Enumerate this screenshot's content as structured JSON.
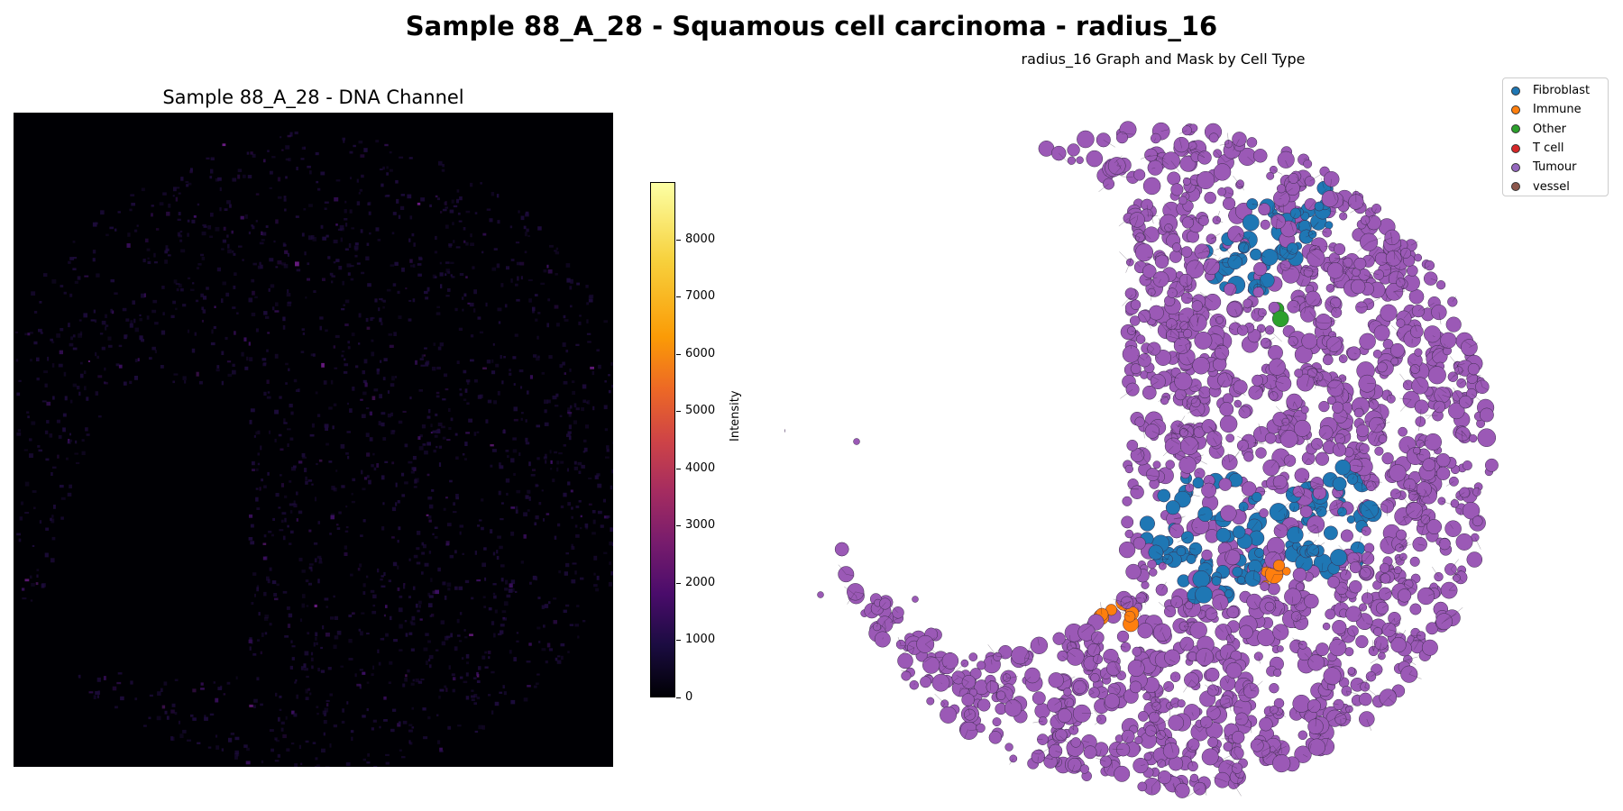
{
  "figure": {
    "suptitle": "Sample 88_A_28 - Squamous cell carcinoma - radius_16"
  },
  "left_panel": {
    "title": "Sample 88_A_28 - DNA Channel",
    "colormap": "inferno",
    "colorbar": {
      "label": "Intensity",
      "min": 0,
      "max": 9000,
      "ticks": [
        "0",
        "1000",
        "2000",
        "3000",
        "4000",
        "5000",
        "6000",
        "7000",
        "8000"
      ],
      "tick_values": [
        0,
        1000,
        2000,
        3000,
        4000,
        5000,
        6000,
        7000,
        8000
      ]
    }
  },
  "right_panel": {
    "title": "radius_16 Graph and Mask by Cell Type",
    "base_color": "#9b59b6",
    "legend": {
      "items": [
        {
          "label": "Fibroblast",
          "color": "#1f77b4"
        },
        {
          "label": "Immune",
          "color": "#ff7f0e"
        },
        {
          "label": "Other",
          "color": "#2ca02c"
        },
        {
          "label": "T cell",
          "color": "#d62728"
        },
        {
          "label": "Tumour",
          "color": "#9467bd"
        },
        {
          "label": "vessel",
          "color": "#8c564b"
        }
      ]
    }
  }
}
